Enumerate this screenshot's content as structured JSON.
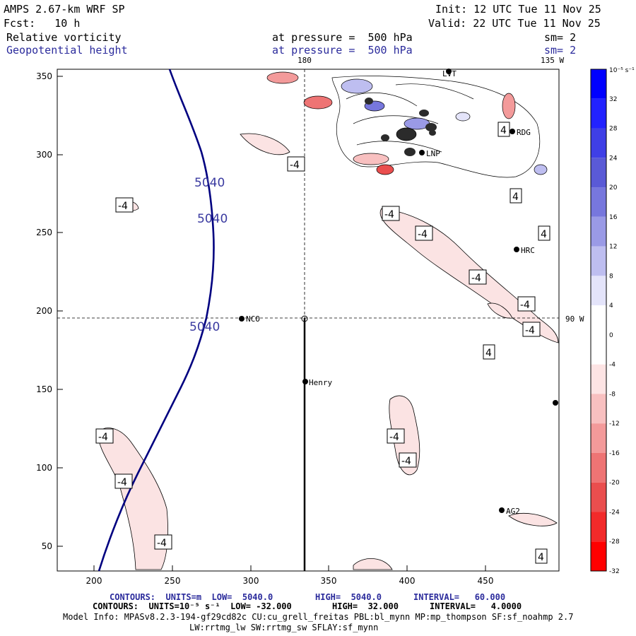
{
  "header": {
    "model": "AMPS 2.67-km WRF SP",
    "init": "Init: 12 UTC Tue 11 Nov 25",
    "fcst": "Fcst:   10 h",
    "valid": "Valid: 22 UTC Tue 11 Nov 25",
    "field1": "Relative vorticity",
    "field1_level": "at pressure =  500 hPa",
    "field1_sm": "sm= 2",
    "field2": "Geopotential height",
    "field2_level": "at pressure =  500 hPa",
    "field2_sm": "sm= 2"
  },
  "map": {
    "x_ticks": [
      "200",
      "250",
      "300",
      "350",
      "400",
      "450"
    ],
    "y_ticks": [
      "350",
      "300",
      "250",
      "200",
      "150",
      "100",
      "50"
    ],
    "lon_180": "180",
    "lon_135w": "135 W",
    "lon_90w": "90 W",
    "stations": [
      "NCO",
      "Henry",
      "HRC",
      "RDG",
      "LNP",
      "AG2",
      "LVT"
    ],
    "height_contour_label": "5040",
    "vort_neg_label": "-4",
    "vort_pos_label": "4"
  },
  "colorbar": {
    "unit": "10⁻⁵ s⁻¹",
    "labels": [
      "32",
      "28",
      "24",
      "20",
      "16",
      "12",
      "8",
      "4",
      "0",
      "-4",
      "-8",
      "-12",
      "-16",
      "-20",
      "-24",
      "-28",
      "-32"
    ],
    "colors": [
      "#0000ff",
      "#2222ff",
      "#3f3fe6",
      "#5a5ad6",
      "#7777dd",
      "#9a9ae6",
      "#bebef0",
      "#e4e4fa",
      "#ffffff",
      "#ffffff",
      "#fde4e4",
      "#f8c0c0",
      "#f39a9a",
      "#ee7474",
      "#ea4e4e",
      "#f22a2a",
      "#ff0000"
    ]
  },
  "footer": {
    "line1_a": "CONTOURS:  UNITS=m  LOW=  5040.0",
    "line1_b": "HIGH=  5040.0",
    "line1_c": "INTERVAL=   60.000",
    "line2_a": "CONTOURS:  UNITS=10⁻⁵ s⁻¹  LOW= -32.000",
    "line2_b": "HIGH=  32.000",
    "line2_c": "INTERVAL=   4.0000",
    "line3": "Model Info: MPASv8.2.3-194-gf29cd82c CU:cu_grell_freitas PBL:bl_mynn MP:mp_thompson SF:sf_noahmp 2.7",
    "line4": "LW:rrtmg_lw SW:rrtmg_sw SFLAY:sf_mynn"
  }
}
